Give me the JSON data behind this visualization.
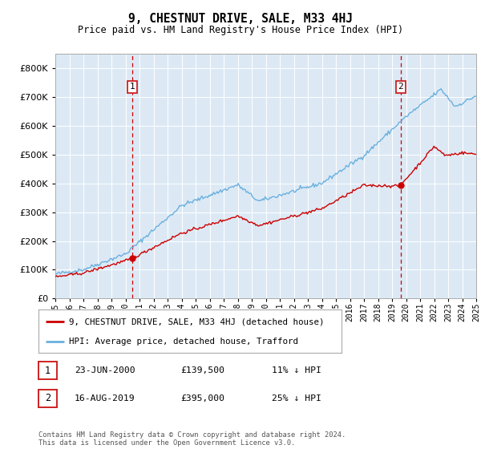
{
  "title": "9, CHESTNUT DRIVE, SALE, M33 4HJ",
  "subtitle": "Price paid vs. HM Land Registry's House Price Index (HPI)",
  "hpi_label": "HPI: Average price, detached house, Trafford",
  "property_label": "9, CHESTNUT DRIVE, SALE, M33 4HJ (detached house)",
  "annotation1": {
    "label": "1",
    "date": "23-JUN-2000",
    "price": 139500,
    "note": "11% ↓ HPI",
    "year": 2000.47
  },
  "annotation2": {
    "label": "2",
    "date": "16-AUG-2019",
    "price": 395000,
    "note": "25% ↓ HPI",
    "year": 2019.62
  },
  "footer": "Contains HM Land Registry data © Crown copyright and database right 2024.\nThis data is licensed under the Open Government Licence v3.0.",
  "ylim": [
    0,
    850000
  ],
  "yticks": [
    0,
    100000,
    200000,
    300000,
    400000,
    500000,
    600000,
    700000,
    800000
  ],
  "bg_color": "#dce9f5",
  "red_color": "#cc0000",
  "blue_color": "#6ab0de",
  "vline_color": "#cc0000",
  "box_color": "#cc2222",
  "xstart": 1995,
  "xend": 2025
}
